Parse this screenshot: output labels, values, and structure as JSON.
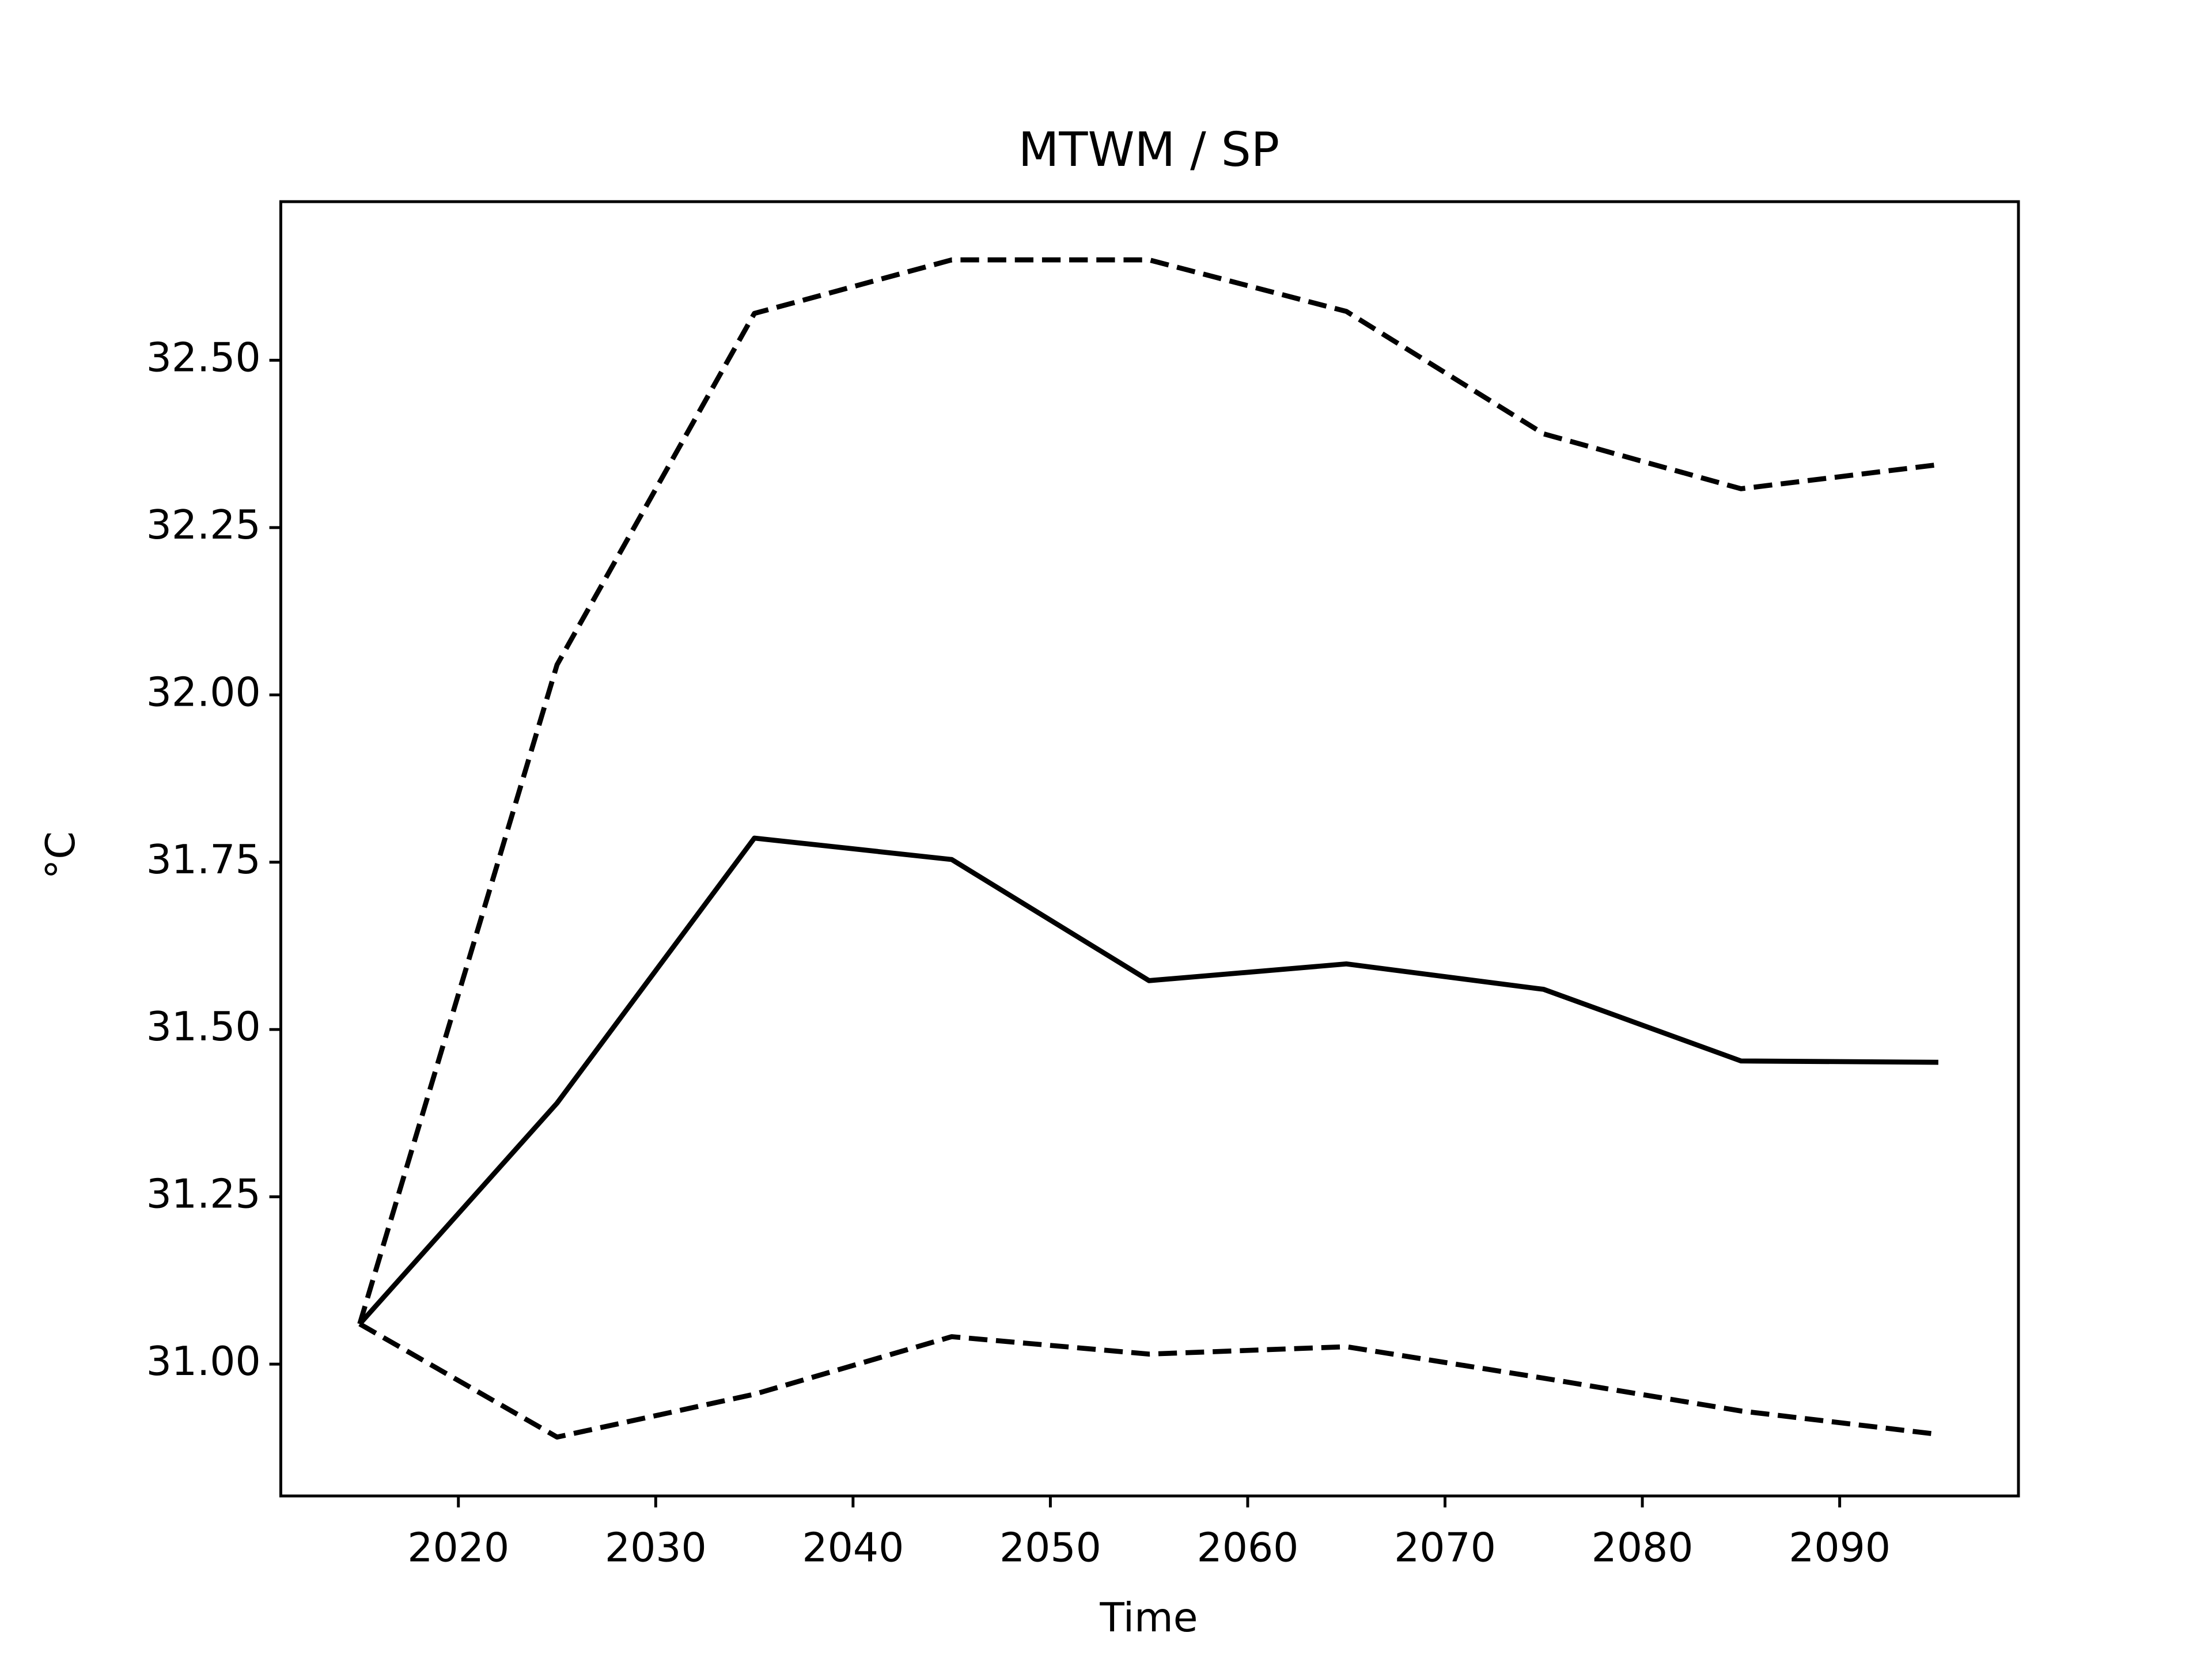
{
  "chart_data": {
    "type": "line",
    "title": "MTWM / SP",
    "xlabel": "Time",
    "ylabel": "°C",
    "x": [
      2015,
      2025,
      2035,
      2045,
      2055,
      2065,
      2075,
      2085,
      2095
    ],
    "series": [
      {
        "color": "#000000",
        "style": "solid",
        "values": [
          31.06,
          31.39,
          31.786,
          31.754,
          31.573,
          31.598,
          31.56,
          31.453,
          31.451
        ]
      },
      {
        "color": "#000000",
        "style": "dashed",
        "values": [
          31.06,
          32.045,
          32.57,
          32.65,
          32.65,
          32.573,
          32.39,
          32.308,
          32.344
        ]
      },
      {
        "color": "#000000",
        "style": "dashed",
        "values": [
          31.06,
          30.891,
          30.955,
          31.041,
          31.015,
          31.026,
          30.979,
          30.93,
          30.895
        ]
      }
    ],
    "xlim": [
      2011,
      2099.06
    ],
    "ylim": [
      30.803,
      32.737
    ],
    "xticks": [
      2020,
      2030,
      2040,
      2050,
      2060,
      2070,
      2080,
      2090
    ],
    "yticks": [
      {
        "value": 31.0,
        "label": "31.00"
      },
      {
        "value": 31.25,
        "label": "31.25"
      },
      {
        "value": 31.5,
        "label": "31.50"
      },
      {
        "value": 31.75,
        "label": "31.75"
      },
      {
        "value": 32.0,
        "label": "32.00"
      },
      {
        "value": 32.25,
        "label": "32.25"
      },
      {
        "value": 32.5,
        "label": "32.50"
      }
    ],
    "grid": false
  }
}
